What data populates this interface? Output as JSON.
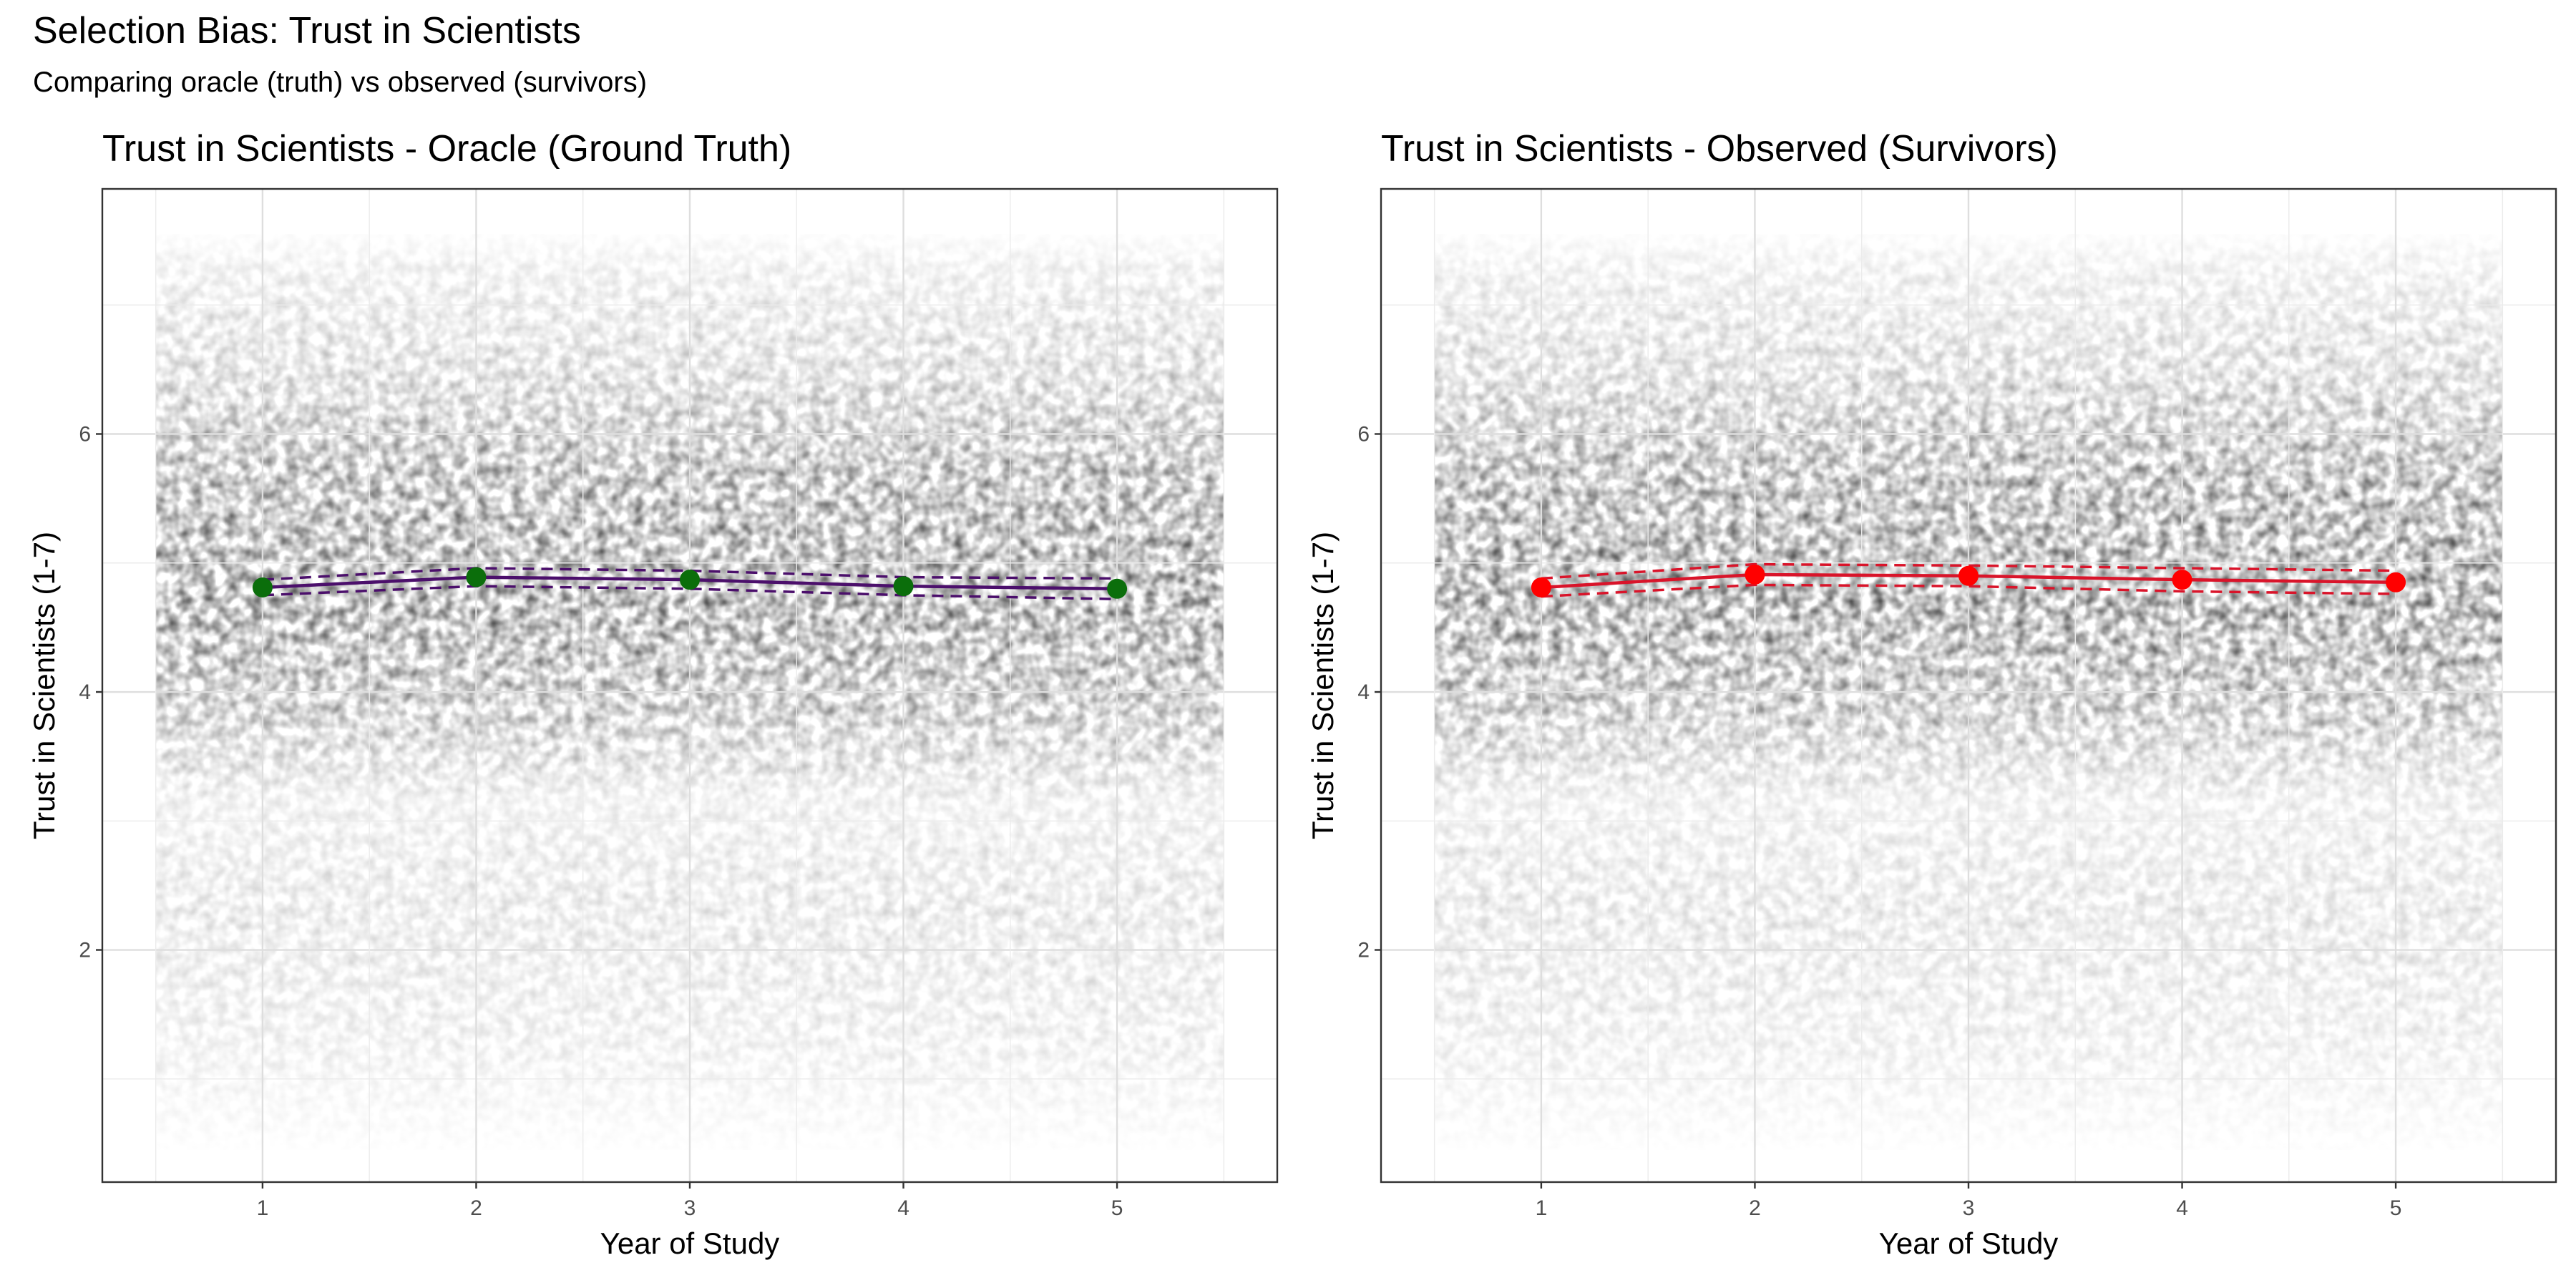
{
  "figure": {
    "title": "Selection Bias: Trust in Scientists",
    "subtitle": "Comparing oracle (truth) vs observed (survivors)"
  },
  "chart_data": [
    {
      "type": "scatter",
      "title": "Trust in Scientists - Oracle (Ground Truth)",
      "xlabel": "Year of Study",
      "ylabel": "Trust in Scientists (1-7)",
      "xlim": [
        0.25,
        5.75
      ],
      "ylim": [
        0.2,
        7.9
      ],
      "x_ticks": [
        1,
        2,
        3,
        4,
        5
      ],
      "y_ticks": [
        2,
        4,
        6
      ],
      "grid": true,
      "background_points": "dense semi-transparent jittered individual responses per year, values roughly 0.5 to 7.5",
      "series": [
        {
          "x": [
            1,
            2,
            3,
            4,
            5
          ],
          "values": [
            4.81,
            4.89,
            4.87,
            4.82,
            4.8
          ],
          "ci_lower": [
            4.75,
            4.82,
            4.8,
            4.75,
            4.72
          ],
          "ci_upper": [
            4.87,
            4.96,
            4.94,
            4.89,
            4.88
          ],
          "line_color": "#4b0f6b",
          "point_color": "#0b6e0b"
        }
      ]
    },
    {
      "type": "scatter",
      "title": "Trust in Scientists - Observed (Survivors)",
      "xlabel": "Year of Study",
      "ylabel": "Trust in Scientists (1-7)",
      "xlim": [
        0.25,
        5.75
      ],
      "ylim": [
        0.2,
        7.9
      ],
      "x_ticks": [
        1,
        2,
        3,
        4,
        5
      ],
      "y_ticks": [
        2,
        4,
        6
      ],
      "grid": true,
      "background_points": "dense semi-transparent jittered individual responses per year, values roughly 0.5 to 7.5",
      "series": [
        {
          "x": [
            1,
            2,
            3,
            4,
            5
          ],
          "values": [
            4.81,
            4.91,
            4.9,
            4.87,
            4.85
          ],
          "ci_lower": [
            4.74,
            4.83,
            4.82,
            4.78,
            4.76
          ],
          "ci_upper": [
            4.88,
            4.99,
            4.98,
            4.96,
            4.94
          ],
          "line_color": "#d9142a",
          "point_color": "#ff0000"
        }
      ]
    }
  ]
}
